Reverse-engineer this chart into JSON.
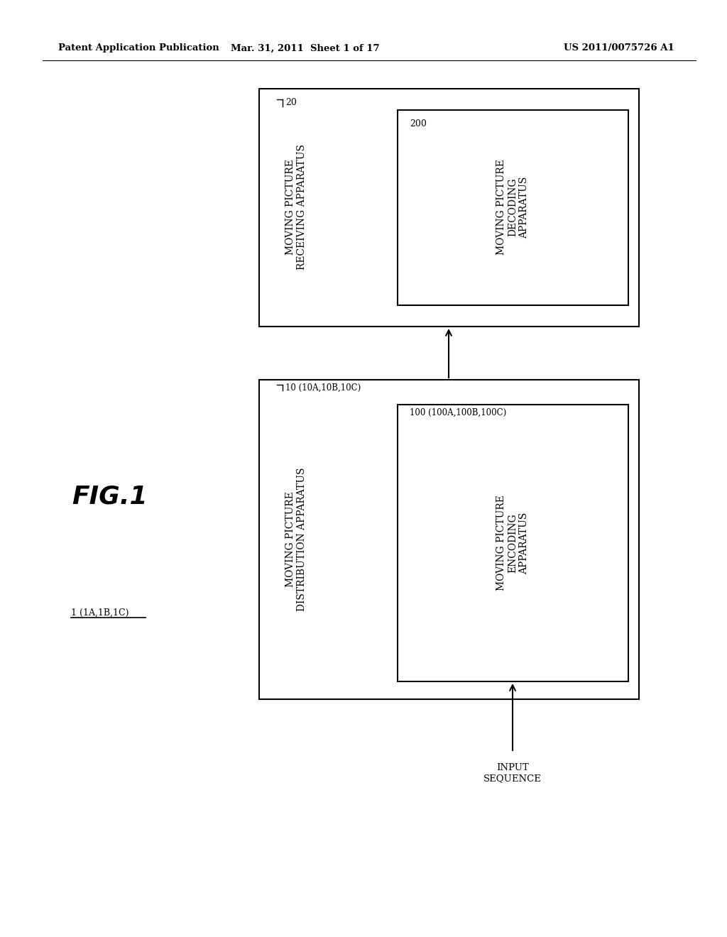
{
  "bg_color": "#ffffff",
  "header_left": "Patent Application Publication",
  "header_mid": "Mar. 31, 2011  Sheet 1 of 17",
  "header_right": "US 2011/0075726 A1",
  "fig_label": "FIG.1",
  "system_label": "1 (1A,1B,1C)",
  "ob1_label": "10 (10A,10B,10C)",
  "ob1_text": "MOVING PICTURE\nDISTRIBUTION APPARATUS",
  "ib1_label": "100 (100A,100B,100C)",
  "ib1_text": "MOVING PICTURE\nENCODING\nAPPARATUS",
  "ob2_label": "20",
  "ob2_text": "MOVING PICTURE\nRECEIVING APPARATUS",
  "ib2_label": "200",
  "ib2_text": "MOVING PICTURE\nDECODING\nAPPARATUS",
  "input_label": "INPUT\nSEQUENCE"
}
